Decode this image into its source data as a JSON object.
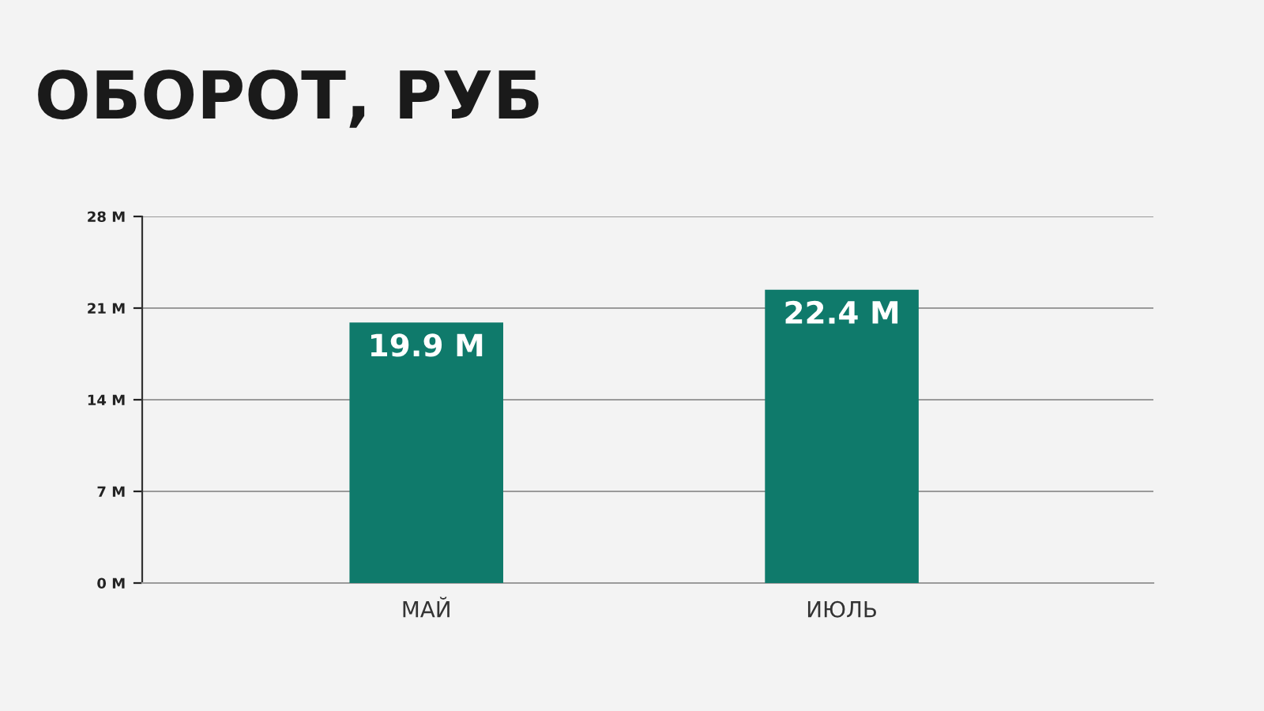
{
  "chart_data": {
    "type": "bar",
    "title": "ОБОРОТ, РУБ",
    "categories": [
      "МАЙ",
      "ИЮЛЬ"
    ],
    "values": [
      19.9,
      22.4
    ],
    "value_labels": [
      "19.9 M",
      "22.4 M"
    ],
    "color": "#0f7a6b",
    "ylim": [
      0,
      28
    ],
    "yticks": [
      {
        "value": 0,
        "label": "0 M"
      },
      {
        "value": 7,
        "label": "7 M"
      },
      {
        "value": 14,
        "label": "14 M"
      },
      {
        "value": 21,
        "label": "21 M"
      },
      {
        "value": 28,
        "label": "28 M"
      }
    ],
    "grid": "y"
  }
}
